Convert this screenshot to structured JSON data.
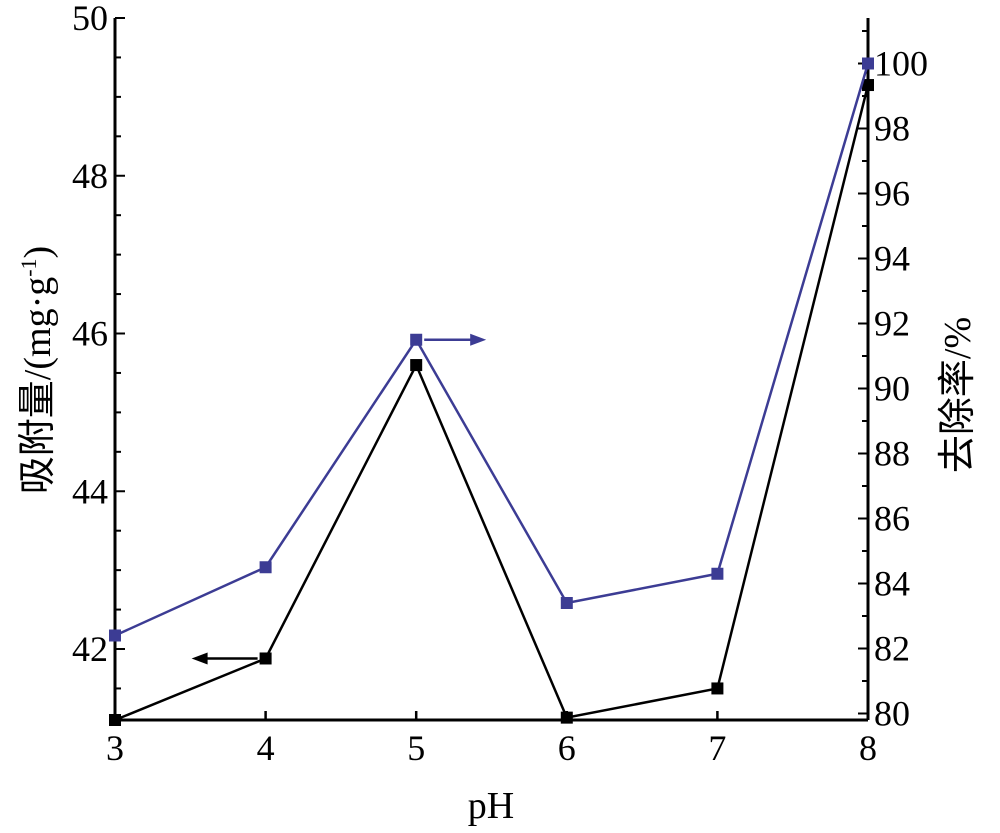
{
  "chart_data": {
    "type": "line",
    "title": "",
    "xlabel": "pH",
    "ylabel_left": "吸附量/(mg·g⁻¹)",
    "ylabel_left_main": "吸附量/(mg·g",
    "ylabel_left_sup": "-1",
    "ylabel_left_close": ")",
    "ylabel_right": "去除率/%",
    "x": [
      3,
      4,
      5,
      6,
      7,
      8
    ],
    "xlim": [
      3,
      8
    ],
    "xticks": [
      "3",
      "4",
      "5",
      "6",
      "7",
      "8"
    ],
    "ylim_left": [
      41.1,
      50
    ],
    "yticks_left": [
      "42",
      "44",
      "46",
      "48",
      "50"
    ],
    "ylim_right": [
      79.8,
      101.4
    ],
    "yticks_right": [
      "80",
      "82",
      "84",
      "86",
      "88",
      "90",
      "92",
      "94",
      "96",
      "98",
      "100"
    ],
    "grid": false,
    "series": [
      {
        "axis": "left",
        "color": "#000000",
        "marker": "square",
        "values": [
          41.1,
          41.88,
          45.6,
          41.13,
          41.5,
          49.15
        ]
      },
      {
        "axis": "right",
        "color": "#3c3c94",
        "marker": "square",
        "values": [
          82.4,
          84.5,
          91.5,
          83.4,
          84.3,
          100.0
        ]
      }
    ],
    "annotations": [
      {
        "type": "arrow",
        "direction": "left",
        "series_index": 0
      },
      {
        "type": "arrow",
        "direction": "right",
        "series_index": 1
      }
    ]
  }
}
